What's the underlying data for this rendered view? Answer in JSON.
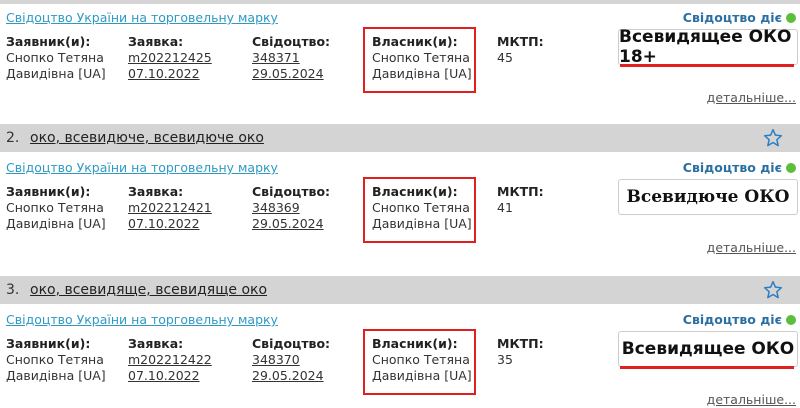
{
  "records": [
    {
      "type": "Свідоцтво України на торговельну марку",
      "status": "Свідоцтво діє",
      "applicant_label": "Заявник(и):",
      "applicant": [
        "Снопко Тетяна",
        "Давидівна [UA]"
      ],
      "application_label": "Заявка:",
      "application_number": "m202212425",
      "application_date": "07.10.2022",
      "certificate_label": "Свідоцтво:",
      "certificate_number": "348371",
      "certificate_date": "29.05.2024",
      "owner_label": "Власник(и):",
      "owner": [
        "Снопко Тетяна",
        "Давидівна [UA]"
      ],
      "mktp_label": "МКТП:",
      "mktp": "45",
      "mark": "Всевидящее ОКО 18+",
      "more": "детальніше..."
    },
    {
      "number": "2.",
      "title": "око, всевидюче, всевидюче око",
      "type": "Свідоцтво України на торговельну марку",
      "status": "Свідоцтво діє",
      "applicant_label": "Заявник(и):",
      "applicant": [
        "Снопко Тетяна",
        "Давидівна [UA]"
      ],
      "application_label": "Заявка:",
      "application_number": "m202212421",
      "application_date": "07.10.2022",
      "certificate_label": "Свідоцтво:",
      "certificate_number": "348369",
      "certificate_date": "29.05.2024",
      "owner_label": "Власник(и):",
      "owner": [
        "Снопко Тетяна",
        "Давидівна [UA]"
      ],
      "mktp_label": "МКТП:",
      "mktp": "41",
      "mark": "Всевидюче ОКО",
      "more": "детальніше..."
    },
    {
      "number": "3.",
      "title": "око, всевидяще, всевидяще око",
      "type": "Свідоцтво України на торговельну марку",
      "status": "Свідоцтво діє",
      "applicant_label": "Заявник(и):",
      "applicant": [
        "Снопко Тетяна",
        "Давидівна [UA]"
      ],
      "application_label": "Заявка:",
      "application_number": "m202212422",
      "application_date": "07.10.2022",
      "certificate_label": "Свідоцтво:",
      "certificate_number": "348370",
      "certificate_date": "29.05.2024",
      "owner_label": "Власник(и):",
      "owner": [
        "Снопко Тетяна",
        "Давидівна [UA]"
      ],
      "mktp_label": "МКТП:",
      "mktp": "35",
      "mark": "Всевидящее ОКО",
      "more": "детальніше..."
    }
  ]
}
